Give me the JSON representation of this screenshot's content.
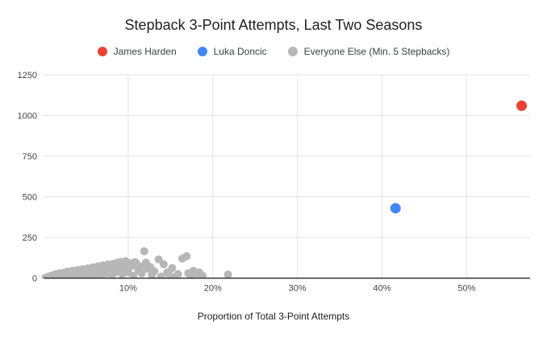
{
  "styles": {
    "background": "#ffffff",
    "grid_color": "#e3e3e3",
    "axis_line_color": "#333333",
    "tick_label_color": "#444444",
    "title_color": "#202124",
    "legend_text_color": "#3c4043"
  },
  "chart_data": {
    "type": "scatter",
    "title": "Stepback 3-Point Attempts, Last Two Seasons",
    "xlabel": "Proportion of Total 3-Point Attempts",
    "ylabel": "",
    "x_unit": "percent",
    "xlim": [
      0,
      57.5
    ],
    "ylim": [
      0,
      1250
    ],
    "grid": true,
    "legend_position": "top",
    "x_ticks": [
      {
        "value": 10,
        "label": "10%"
      },
      {
        "value": 20,
        "label": "20%"
      },
      {
        "value": 30,
        "label": "30%"
      },
      {
        "value": 40,
        "label": "40%"
      },
      {
        "value": 50,
        "label": "50%"
      }
    ],
    "y_ticks": [
      {
        "value": 0,
        "label": "0"
      },
      {
        "value": 250,
        "label": "250"
      },
      {
        "value": 500,
        "label": "500"
      },
      {
        "value": 750,
        "label": "750"
      },
      {
        "value": 1000,
        "label": "1000"
      },
      {
        "value": 1250,
        "label": "1250"
      }
    ],
    "series": [
      {
        "name": "James Harden",
        "color": "#EA4335",
        "marker_radius": 6.5,
        "points": [
          [
            56.5,
            1060
          ]
        ]
      },
      {
        "name": "Luka Doncic",
        "color": "#4285F4",
        "marker_radius": 6.5,
        "points": [
          [
            41.6,
            430
          ]
        ]
      },
      {
        "name": "Everyone Else (Min. 5 Stepbacks)",
        "color": "#B7B7B7",
        "marker_radius": 5,
        "points": [
          [
            0.2,
            2
          ],
          [
            0.4,
            4
          ],
          [
            0.6,
            10
          ],
          [
            0.7,
            2
          ],
          [
            0.9,
            14
          ],
          [
            1.0,
            6
          ],
          [
            1.2,
            20
          ],
          [
            1.3,
            3
          ],
          [
            1.5,
            24
          ],
          [
            1.6,
            8
          ],
          [
            1.8,
            15
          ],
          [
            1.9,
            30
          ],
          [
            2.1,
            5
          ],
          [
            2.2,
            18
          ],
          [
            2.4,
            34
          ],
          [
            2.5,
            10
          ],
          [
            2.7,
            22
          ],
          [
            2.8,
            40
          ],
          [
            3.0,
            6
          ],
          [
            3.1,
            28
          ],
          [
            3.3,
            14
          ],
          [
            3.4,
            45
          ],
          [
            3.6,
            20
          ],
          [
            3.7,
            34
          ],
          [
            3.9,
            8
          ],
          [
            4.0,
            50
          ],
          [
            4.2,
            26
          ],
          [
            4.3,
            38
          ],
          [
            4.5,
            12
          ],
          [
            4.6,
            55
          ],
          [
            4.8,
            30
          ],
          [
            4.9,
            42
          ],
          [
            5.1,
            16
          ],
          [
            5.2,
            60
          ],
          [
            5.4,
            24
          ],
          [
            5.5,
            46
          ],
          [
            5.7,
            34
          ],
          [
            5.8,
            66
          ],
          [
            6.0,
            12
          ],
          [
            6.1,
            50
          ],
          [
            6.3,
            28
          ],
          [
            6.4,
            72
          ],
          [
            6.6,
            40
          ],
          [
            6.7,
            58
          ],
          [
            6.9,
            18
          ],
          [
            7.0,
            78
          ],
          [
            7.2,
            45
          ],
          [
            7.3,
            62
          ],
          [
            7.5,
            30
          ],
          [
            7.6,
            84
          ],
          [
            7.8,
            52
          ],
          [
            7.9,
            68
          ],
          [
            8.1,
            22
          ],
          [
            8.2,
            88
          ],
          [
            8.4,
            58
          ],
          [
            8.5,
            36
          ],
          [
            8.7,
            95
          ],
          [
            8.8,
            70
          ],
          [
            9.0,
            45
          ],
          [
            9.1,
            100
          ],
          [
            9.3,
            25
          ],
          [
            9.4,
            80
          ],
          [
            9.6,
            55
          ],
          [
            9.7,
            105
          ],
          [
            9.9,
            65
          ],
          [
            10.0,
            35
          ],
          [
            10.2,
            92
          ],
          [
            10.4,
            75
          ],
          [
            10.6,
            15
          ],
          [
            10.8,
            98
          ],
          [
            11.0,
            88
          ],
          [
            11.2,
            48
          ],
          [
            11.4,
            70
          ],
          [
            11.6,
            30
          ],
          [
            11.9,
            165
          ],
          [
            12.1,
            95
          ],
          [
            12.3,
            58
          ],
          [
            12.6,
            68
          ],
          [
            12.8,
            20
          ],
          [
            13.1,
            42
          ],
          [
            13.6,
            115
          ],
          [
            13.9,
            10
          ],
          [
            14.2,
            85
          ],
          [
            14.6,
            35
          ],
          [
            14.9,
            18
          ],
          [
            15.2,
            62
          ],
          [
            15.6,
            8
          ],
          [
            15.9,
            25
          ],
          [
            16.4,
            120
          ],
          [
            16.9,
            135
          ],
          [
            17.1,
            30
          ],
          [
            17.4,
            12
          ],
          [
            17.7,
            45
          ],
          [
            18.1,
            28
          ],
          [
            18.4,
            35
          ],
          [
            18.8,
            15
          ],
          [
            21.8,
            22
          ]
        ]
      }
    ]
  }
}
